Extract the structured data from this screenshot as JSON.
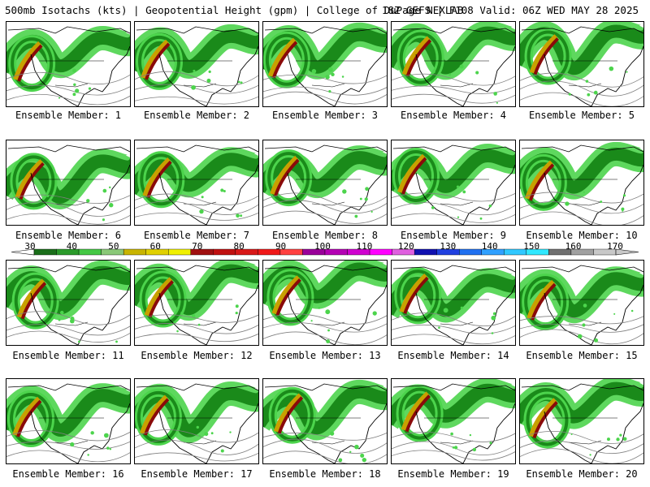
{
  "header": {
    "title_left": "500mb Isotachs (kts) | Geopotential Height (gpm) | College of DuPage NEXLAB",
    "title_right": "18Z GEFS | F108 Valid: 06Z WED MAY 28 2025"
  },
  "panels": [
    {
      "member": 1,
      "label": "Ensemble Member: 1"
    },
    {
      "member": 2,
      "label": "Ensemble Member: 2"
    },
    {
      "member": 3,
      "label": "Ensemble Member: 3"
    },
    {
      "member": 4,
      "label": "Ensemble Member: 4"
    },
    {
      "member": 5,
      "label": "Ensemble Member: 5"
    },
    {
      "member": 6,
      "label": "Ensemble Member: 6"
    },
    {
      "member": 7,
      "label": "Ensemble Member: 7"
    },
    {
      "member": 8,
      "label": "Ensemble Member: 8"
    },
    {
      "member": 9,
      "label": "Ensemble Member: 9"
    },
    {
      "member": 10,
      "label": "Ensemble Member: 10"
    },
    {
      "member": 11,
      "label": "Ensemble Member: 11"
    },
    {
      "member": 12,
      "label": "Ensemble Member: 12"
    },
    {
      "member": 13,
      "label": "Ensemble Member: 13"
    },
    {
      "member": 14,
      "label": "Ensemble Member: 14"
    },
    {
      "member": 15,
      "label": "Ensemble Member: 15"
    },
    {
      "member": 16,
      "label": "Ensemble Member: 16"
    },
    {
      "member": 17,
      "label": "Ensemble Member: 17"
    },
    {
      "member": 18,
      "label": "Ensemble Member: 18"
    },
    {
      "member": 19,
      "label": "Ensemble Member: 19"
    },
    {
      "member": 20,
      "label": "Ensemble Member: 20"
    }
  ],
  "colorbar": {
    "unit": "kts",
    "labels": [
      "30",
      "40",
      "50",
      "60",
      "70",
      "80",
      "90",
      "100",
      "110",
      "120",
      "130",
      "140",
      "150",
      "160",
      "170"
    ],
    "colors": [
      "#1a6e1a",
      "#2a9a2a",
      "#44c844",
      "#8ac878",
      "#c8b400",
      "#e0d000",
      "#f0f000",
      "#a01010",
      "#c01010",
      "#d81818",
      "#f01818",
      "#ff4040",
      "#9a009a",
      "#b400b4",
      "#d000d0",
      "#ff00ff",
      "#e060e0",
      "#1010b0",
      "#2040e0",
      "#2070f0",
      "#30a0ff",
      "#30c8ff",
      "#30e8ff",
      "#707070",
      "#a0a0a0",
      "#c8c8c8"
    ]
  },
  "map_colors": {
    "jet_light": "#4cd44c",
    "jet_dark": "#1a8a1a",
    "jet_mid": "#c8a000",
    "jet_core": "#8a0a0a",
    "coast": "#000000",
    "height_contour": "#808080"
  }
}
